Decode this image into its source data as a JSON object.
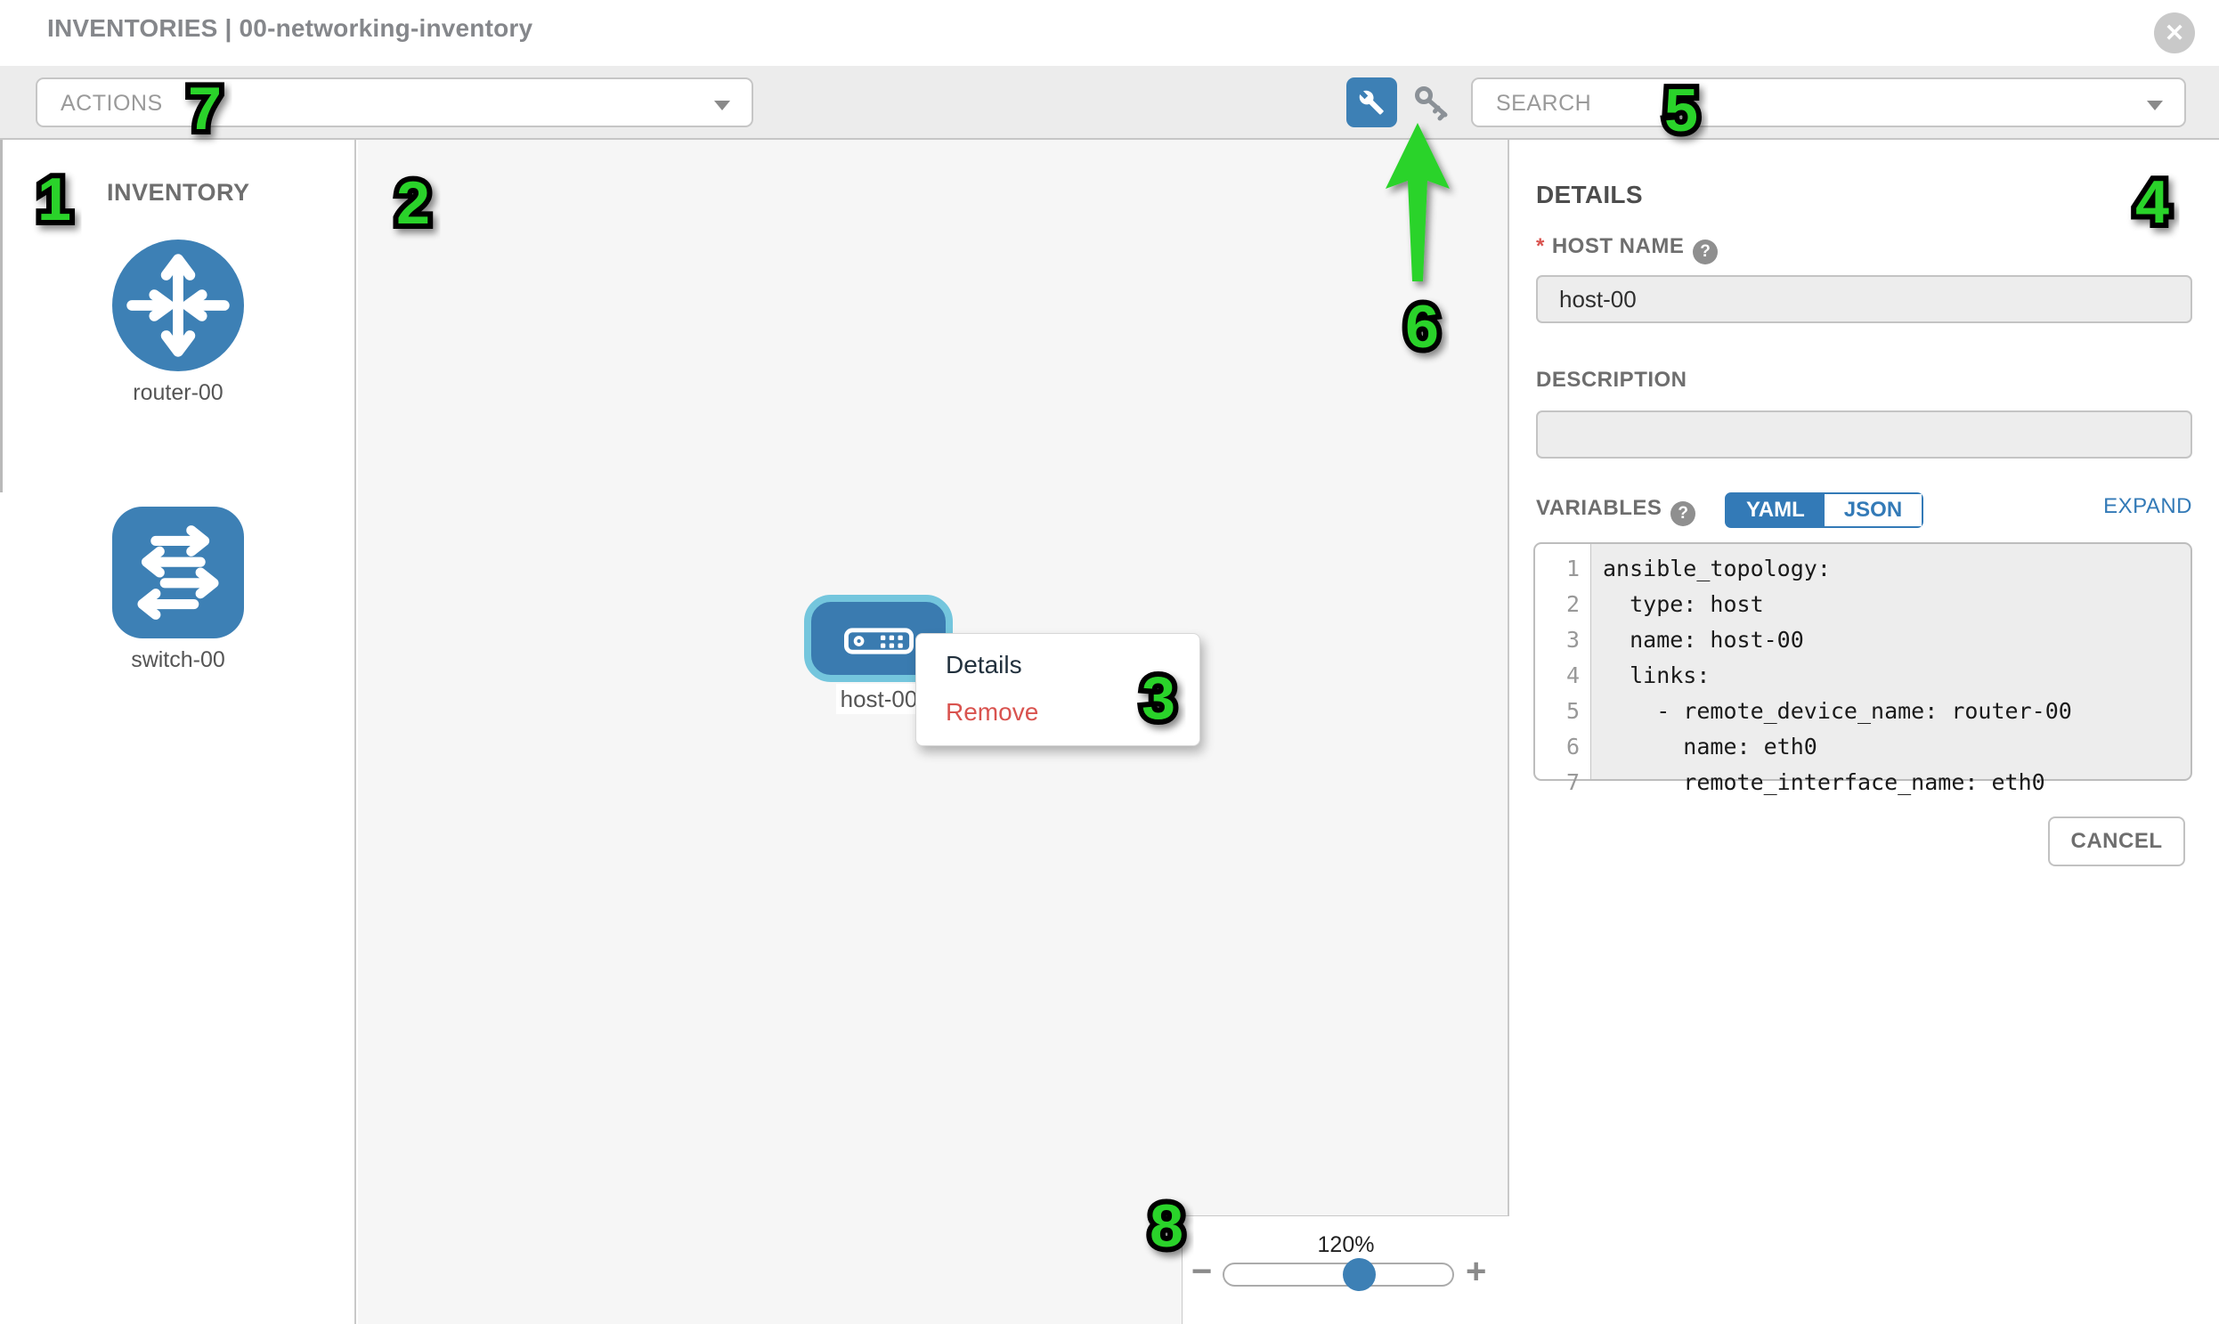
{
  "header": {
    "title_section": "INVENTORIES",
    "separator": "|",
    "title_name": "00-networking-inventory",
    "close_glyph": "✕"
  },
  "toolbar": {
    "actions_placeholder": "ACTIONS",
    "search_placeholder": "SEARCH"
  },
  "sidebar": {
    "heading": "INVENTORY",
    "items": [
      {
        "label": "router-00",
        "type": "router"
      },
      {
        "label": "switch-00",
        "type": "switch"
      }
    ]
  },
  "canvas": {
    "node": {
      "label": "host-00"
    },
    "context_menu": {
      "details_label": "Details",
      "remove_label": "Remove"
    },
    "zoom_control": {
      "level": "120%",
      "minus_glyph": "−",
      "plus_glyph": "+"
    }
  },
  "details_panel": {
    "heading": "DETAILS",
    "host_name": {
      "required_marker": "*",
      "label": "HOST NAME",
      "help_glyph": "?",
      "value": "host-00"
    },
    "description": {
      "label": "DESCRIPTION",
      "value": ""
    },
    "variables": {
      "label": "VARIABLES",
      "help_glyph": "?",
      "tabs": {
        "yaml": "YAML",
        "json": "JSON"
      },
      "active_tab": "YAML",
      "expand_label": "EXPAND",
      "code_lines": [
        {
          "n": "1",
          "t": "ansible_topology:"
        },
        {
          "n": "2",
          "t": "  type: host"
        },
        {
          "n": "3",
          "t": "  name: host-00"
        },
        {
          "n": "4",
          "t": "  links:"
        },
        {
          "n": "5",
          "t": "    - remote_device_name: router-00"
        },
        {
          "n": "6",
          "t": "      name: eth0"
        },
        {
          "n": "7",
          "t": "      remote_interface_name: eth0"
        }
      ]
    },
    "cancel_label": "CANCEL"
  },
  "annotations": {
    "labels": [
      "1",
      "2",
      "3",
      "4",
      "5",
      "6",
      "7",
      "8"
    ]
  },
  "colors": {
    "accent_blue": "#3d80b5",
    "link_blue": "#337ab7",
    "selection_ring": "#74c6dd",
    "danger_red": "#d9534f",
    "annotation_green": "#2bd32b"
  }
}
